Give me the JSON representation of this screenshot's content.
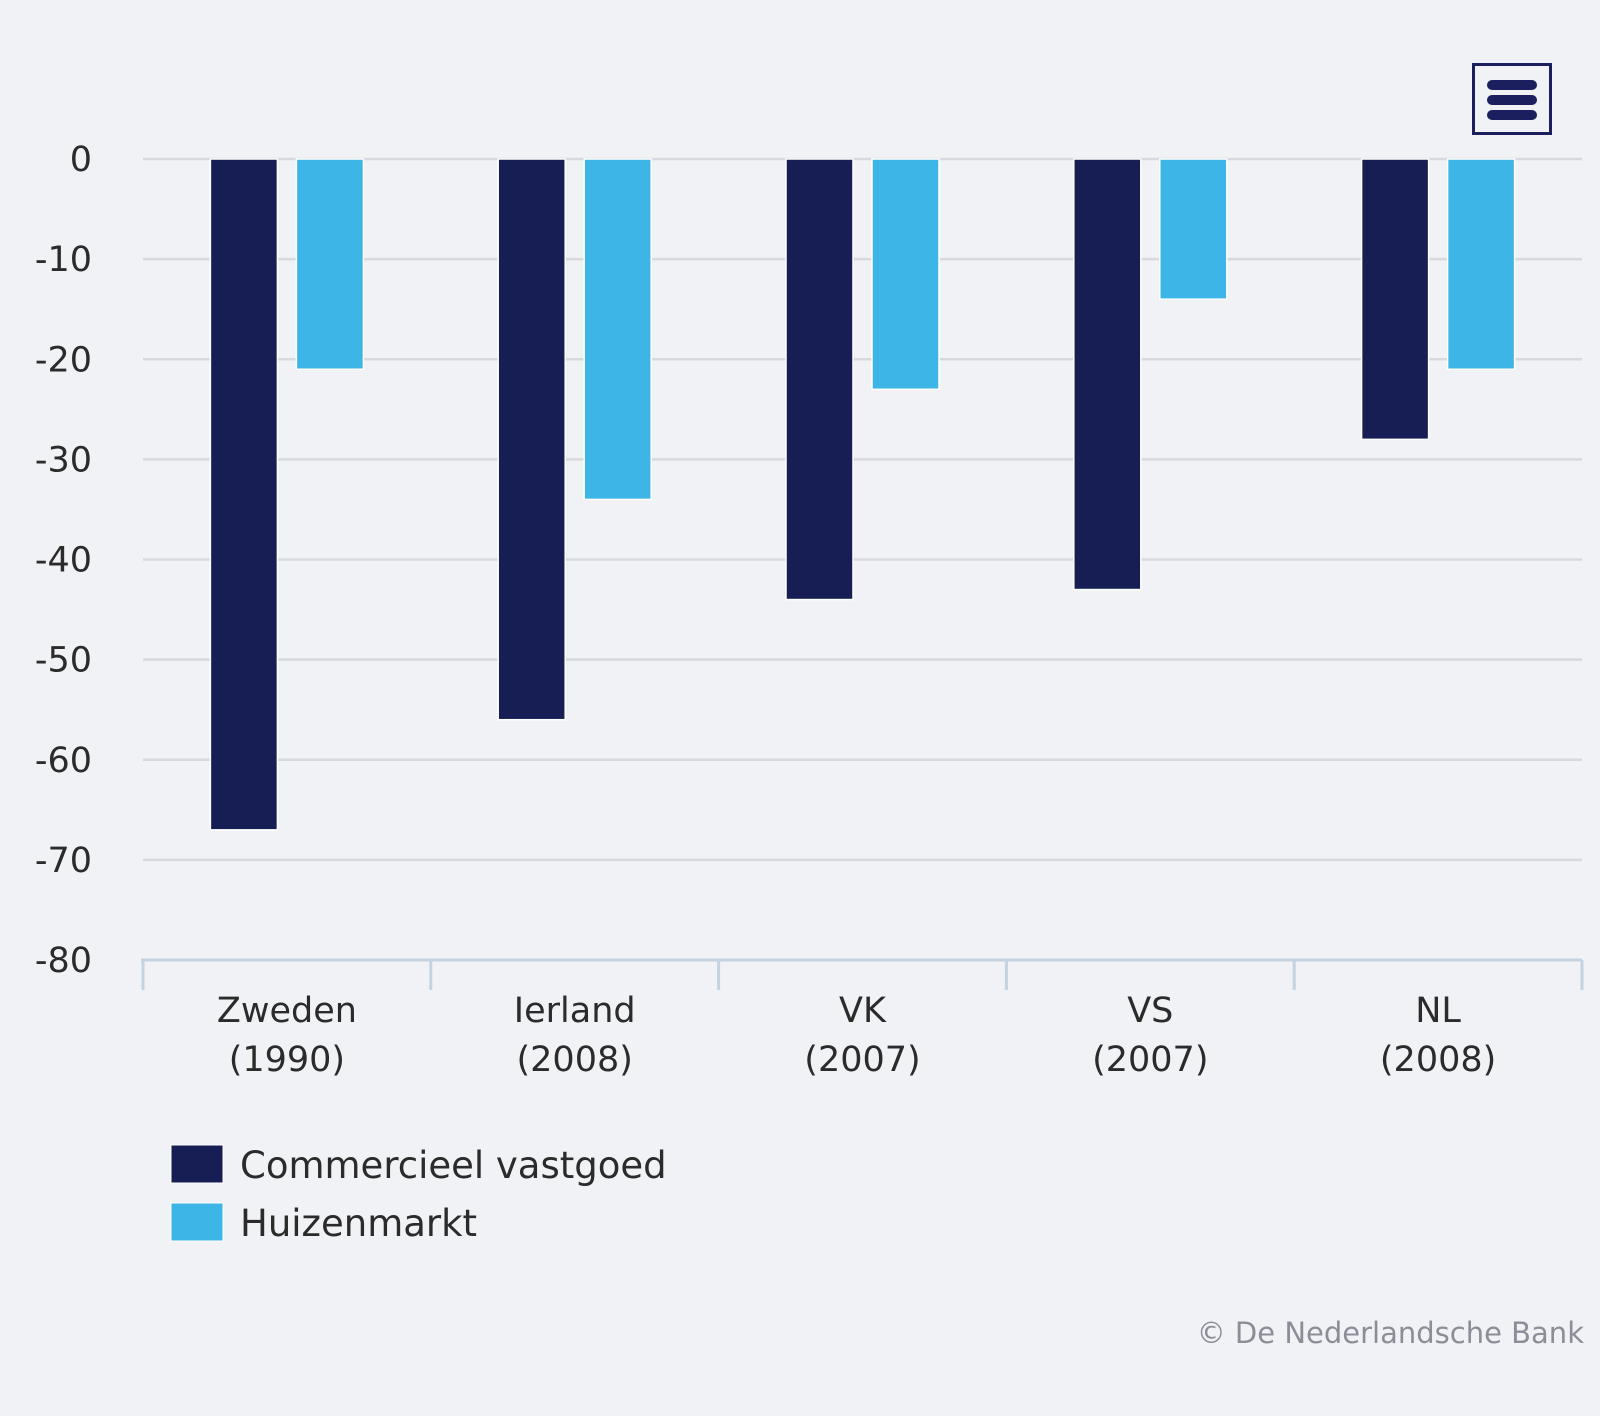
{
  "chart_data": {
    "type": "bar",
    "title": "",
    "xlabel": "",
    "ylabel": "",
    "categories": [
      [
        "Zweden",
        "(1990)"
      ],
      [
        "Ierland",
        "(2008)"
      ],
      [
        "VK",
        "(2007)"
      ],
      [
        "VS",
        "(2007)"
      ],
      [
        "NL",
        "(2008)"
      ]
    ],
    "series": [
      {
        "name": "Commercieel vastgoed",
        "color": "#161e54",
        "values": [
          -67,
          -56,
          -44,
          -43,
          -28
        ]
      },
      {
        "name": "Huizenmarkt",
        "color": "#3db5e6",
        "values": [
          -21,
          -34,
          -23,
          -14,
          -21
        ]
      }
    ],
    "ylim": [
      -80,
      0
    ],
    "yticks": [
      0,
      -10,
      -20,
      -30,
      -40,
      -50,
      -60,
      -70,
      -80
    ],
    "grid": true,
    "legend": "bottom-left"
  },
  "menu": {
    "icon": "hamburger-menu-icon"
  },
  "credits": "© De Nederlandsche Bank"
}
